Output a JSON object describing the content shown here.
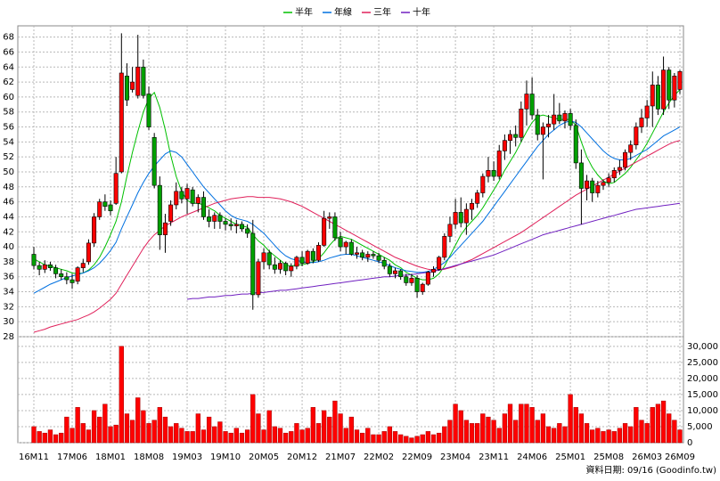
{
  "chart_data": {
    "type": "candlestick",
    "categories": [
      "16M11",
      null,
      null,
      null,
      null,
      null,
      null,
      "17M06",
      null,
      null,
      null,
      null,
      null,
      null,
      "18M01",
      null,
      null,
      null,
      null,
      null,
      null,
      "18M08",
      null,
      null,
      null,
      null,
      null,
      null,
      "19M03",
      null,
      null,
      null,
      null,
      null,
      null,
      "19M10",
      null,
      null,
      null,
      null,
      null,
      null,
      "20M05",
      null,
      null,
      null,
      null,
      null,
      null,
      "20M12",
      null,
      null,
      null,
      null,
      null,
      null,
      "21M07",
      null,
      null,
      null,
      null,
      null,
      null,
      "22M02",
      null,
      null,
      null,
      null,
      null,
      null,
      "22M09",
      null,
      null,
      null,
      null,
      null,
      null,
      "23M04",
      null,
      null,
      null,
      null,
      null,
      null,
      "23M11",
      null,
      null,
      null,
      null,
      null,
      null,
      "24M06",
      null,
      null,
      null,
      null,
      null,
      null,
      "25M01",
      null,
      null,
      null,
      null,
      null,
      null,
      "25M08",
      null,
      null,
      null,
      null,
      null,
      null,
      "26M03",
      null,
      null,
      null,
      null,
      null,
      "26M09"
    ],
    "open": [
      39,
      37.5,
      37,
      37.6,
      37.2,
      36.4,
      36,
      35.6,
      35.4,
      37.2,
      38,
      40.5,
      44,
      46,
      45.6,
      45.8,
      50,
      62.8,
      61,
      60.2,
      64,
      60.4,
      54.6,
      48.2,
      41.6,
      43.4,
      45.6,
      47.4,
      46.4,
      47.6,
      45.8,
      46.6,
      44,
      43.4,
      44.2,
      43.4,
      43,
      42.8,
      43,
      42.4,
      41.8,
      33.6,
      38,
      39.2,
      37.6,
      37,
      37.8,
      36.8,
      37.4,
      38.6,
      37.8,
      39.4,
      38.2,
      40.2,
      43.8,
      44,
      41.2,
      40,
      40.6,
      39,
      39.2,
      38.6,
      39,
      38.8,
      38.2,
      37.4,
      36.4,
      36.8,
      36,
      35.2,
      35.8,
      34,
      35,
      36.6,
      37,
      38.6,
      41.4,
      43,
      44.6,
      43.2,
      45,
      45.8,
      47.2,
      49.4,
      50.2,
      49.4,
      52.8,
      54.2,
      55,
      54.6,
      58.4,
      60.4,
      57.6,
      55,
      56,
      56.4,
      57.6,
      56.8,
      57.8,
      56.2,
      51.2,
      47.8,
      48.8,
      47.2,
      48.2,
      48.6,
      49.2,
      50.2,
      50.6,
      52.6,
      53.6,
      56,
      57.2,
      58.8,
      61.6,
      58.4,
      63.6,
      59.6,
      61
    ],
    "high": [
      40,
      38,
      38.2,
      38,
      37.6,
      37,
      36.6,
      36.4,
      37.4,
      38.4,
      41,
      44.5,
      46.4,
      47,
      46.2,
      52,
      68.5,
      64.5,
      64,
      68.3,
      65,
      61.4,
      55.2,
      49.4,
      44.4,
      46.2,
      48.6,
      48,
      48.4,
      48,
      47,
      47.4,
      45,
      44.6,
      44.6,
      43.8,
      43.8,
      43.6,
      43.4,
      43,
      43.6,
      38.4,
      39.8,
      39.6,
      38.6,
      38.2,
      38,
      37.8,
      38.8,
      39.4,
      39.6,
      39.8,
      40.6,
      44.8,
      44.6,
      44.6,
      42,
      40.8,
      41,
      40,
      39.6,
      39.4,
      39.4,
      39.2,
      38.6,
      37.8,
      37.2,
      37,
      36.4,
      36.4,
      36.2,
      35.2,
      36.8,
      37.4,
      38.8,
      41.8,
      44,
      46.4,
      46.6,
      45.8,
      46.4,
      47.6,
      49.8,
      52,
      51.4,
      53.6,
      55,
      55.6,
      56.2,
      59.4,
      62.2,
      62.6,
      58.4,
      56.6,
      57.6,
      60.4,
      59.2,
      58.2,
      58.4,
      57,
      53,
      49.6,
      49.2,
      48.8,
      49,
      49.8,
      50.6,
      51.6,
      53,
      54.2,
      56.6,
      58.4,
      59.6,
      63.4,
      62.8,
      65.4,
      64,
      63.2,
      63.6
    ],
    "low": [
      37,
      36.2,
      36.5,
      36.8,
      35.8,
      35.6,
      35,
      34.4,
      35,
      36.6,
      37.6,
      40,
      43.6,
      44.8,
      44.2,
      45.6,
      49.8,
      58.8,
      60.6,
      59.8,
      59.8,
      55.6,
      47.8,
      39.6,
      39.2,
      42.8,
      45,
      45.8,
      44.4,
      45.4,
      44.6,
      43.6,
      42.6,
      42.4,
      42.4,
      42.2,
      42.2,
      41.8,
      42,
      41.2,
      31.6,
      33.2,
      37,
      37,
      36.4,
      36.4,
      36.2,
      36,
      37,
      37.4,
      37.6,
      37.8,
      38,
      40,
      42.4,
      40.8,
      39.4,
      39,
      38.8,
      38.4,
      38.2,
      38,
      38.4,
      37.8,
      37,
      36,
      35.8,
      35.6,
      34.8,
      34.8,
      33.2,
      33.6,
      34.8,
      36,
      36.8,
      38.2,
      40.6,
      42.4,
      42.6,
      41.6,
      43.6,
      45.2,
      46.6,
      48.6,
      48.8,
      49,
      51.6,
      52.4,
      53.4,
      54,
      56.2,
      57,
      54.2,
      49,
      54.6,
      55.6,
      56.4,
      55.8,
      55.6,
      50.4,
      43,
      46.2,
      46,
      46.6,
      47.6,
      48,
      48.6,
      49.6,
      50.2,
      51.6,
      53,
      55.2,
      56,
      56,
      57.6,
      57.6,
      58.4,
      58.6,
      60.4
    ],
    "close": [
      37.5,
      37,
      37.6,
      37.2,
      36.4,
      36,
      35.6,
      35.2,
      37.2,
      37.8,
      40.5,
      44,
      46,
      45.4,
      44.8,
      49.8,
      63.2,
      59.6,
      62,
      64,
      60.2,
      56,
      48.2,
      41.6,
      43.2,
      45.6,
      47.4,
      46.4,
      47.8,
      45.8,
      46.6,
      44,
      43.4,
      44.2,
      43.4,
      43,
      42.8,
      43,
      42.4,
      41.8,
      33.6,
      38,
      39.2,
      37.6,
      37,
      37.8,
      36.8,
      37.4,
      38.6,
      37.8,
      39.4,
      38.2,
      40.2,
      43.8,
      44,
      41.2,
      40,
      40.6,
      39,
      39.2,
      38.6,
      39,
      38.8,
      38.2,
      37.4,
      36.4,
      36.8,
      36,
      35.2,
      35.8,
      34,
      35,
      36.6,
      37,
      38.6,
      41.4,
      43,
      44.6,
      43.2,
      45,
      45.8,
      47.2,
      49.4,
      50.2,
      49.4,
      52.8,
      54.2,
      55,
      54.6,
      58.4,
      60.4,
      57.6,
      55,
      56,
      56.4,
      57.6,
      56.8,
      57.8,
      56.2,
      51.2,
      47.8,
      48.8,
      47.2,
      48.2,
      48.6,
      49.2,
      50.2,
      50.6,
      52.6,
      53.6,
      56,
      57.2,
      58.8,
      61.6,
      58.4,
      63.6,
      59.6,
      62.8,
      63.4
    ],
    "up_color": "#ff0000",
    "down_color": "#00a000",
    "series": [
      {
        "name": "半年",
        "color": "#00c000",
        "values": [
          38.4,
          38.0,
          37.6,
          37.4,
          37.2,
          37.0,
          36.8,
          36.5,
          36.4,
          36.5,
          36.9,
          37.6,
          38.6,
          40.0,
          41.6,
          43.4,
          46.0,
          49.4,
          52.6,
          55.4,
          58.0,
          59.8,
          60.6,
          58.6,
          55.6,
          52.2,
          49.4,
          47.4,
          46.2,
          45.8,
          45.8,
          45.6,
          45.2,
          44.8,
          44.2,
          43.8,
          43.4,
          43.0,
          42.8,
          42.6,
          41.6,
          40.8,
          40.2,
          39.4,
          38.8,
          38.2,
          37.6,
          37.4,
          37.6,
          37.6,
          37.8,
          38.0,
          38.4,
          39.2,
          40.2,
          41.0,
          41.4,
          41.2,
          41.0,
          40.6,
          40.2,
          39.8,
          39.4,
          39.0,
          38.6,
          38.2,
          37.6,
          37.2,
          36.6,
          36.2,
          35.8,
          35.6,
          35.6,
          35.8,
          36.4,
          37.4,
          38.8,
          40.2,
          41.6,
          42.6,
          43.4,
          44.2,
          45.2,
          46.4,
          47.6,
          48.8,
          50.2,
          51.4,
          52.6,
          54.0,
          55.4,
          56.6,
          57.4,
          57.6,
          57.4,
          57.2,
          57.0,
          57.0,
          57.0,
          56.2,
          54.0,
          52.0,
          50.6,
          49.6,
          48.8,
          48.4,
          48.6,
          49.2,
          49.8,
          50.6,
          51.6,
          52.6,
          53.8,
          55.2,
          56.6,
          58.0,
          59.2,
          60.2,
          61.0
        ]
      },
      {
        "name": "年線",
        "color": "#0070e0",
        "values": [
          33.8,
          34.2,
          34.6,
          35.0,
          35.3,
          35.6,
          35.9,
          36.1,
          36.3,
          36.5,
          36.8,
          37.2,
          37.8,
          38.6,
          39.5,
          40.6,
          42.4,
          44.0,
          45.6,
          47.2,
          48.6,
          49.8,
          50.8,
          51.6,
          52.4,
          52.8,
          52.6,
          52.0,
          51.0,
          50.0,
          49.0,
          48.0,
          47.2,
          46.4,
          45.6,
          44.8,
          44.2,
          43.8,
          43.6,
          43.4,
          43.0,
          42.4,
          41.8,
          41.0,
          40.2,
          39.4,
          38.8,
          38.4,
          38.2,
          38.0,
          37.9,
          37.9,
          38.0,
          38.2,
          38.5,
          38.7,
          38.9,
          39.0,
          39.0,
          38.8,
          38.6,
          38.4,
          38.2,
          38.0,
          37.8,
          37.5,
          37.2,
          37.0,
          36.8,
          36.7,
          36.6,
          36.6,
          36.7,
          37.0,
          37.4,
          37.9,
          38.6,
          39.4,
          40.2,
          41.0,
          41.8,
          42.6,
          43.4,
          44.4,
          45.4,
          46.4,
          47.4,
          48.4,
          49.4,
          50.4,
          51.4,
          52.4,
          53.4,
          54.2,
          55.0,
          55.6,
          56.2,
          56.6,
          56.8,
          56.6,
          56.0,
          55.2,
          54.4,
          53.6,
          52.8,
          52.2,
          51.8,
          51.6,
          51.6,
          51.8,
          52.2,
          52.6,
          53.0,
          53.6,
          54.2,
          54.8,
          55.2,
          55.6,
          56.0
        ]
      },
      {
        "name": "三年",
        "color": "#e0205a",
        "values": [
          28.6,
          28.8,
          29.0,
          29.3,
          29.5,
          29.7,
          29.9,
          30.1,
          30.3,
          30.6,
          30.9,
          31.3,
          31.8,
          32.4,
          33.0,
          33.8,
          35.0,
          36.2,
          37.4,
          38.6,
          39.8,
          40.8,
          41.6,
          42.2,
          42.8,
          43.2,
          43.6,
          44.0,
          44.3,
          44.6,
          44.9,
          45.2,
          45.5,
          45.8,
          46.0,
          46.2,
          46.4,
          46.5,
          46.6,
          46.7,
          46.7,
          46.6,
          46.6,
          46.6,
          46.5,
          46.4,
          46.2,
          46.0,
          45.7,
          45.4,
          45.0,
          44.6,
          44.2,
          43.8,
          43.4,
          43.0,
          42.6,
          42.2,
          41.8,
          41.4,
          41.0,
          40.6,
          40.2,
          39.8,
          39.4,
          39.0,
          38.6,
          38.3,
          38.0,
          37.7,
          37.4,
          37.2,
          37.0,
          36.9,
          36.9,
          37.0,
          37.2,
          37.4,
          37.7,
          38.0,
          38.3,
          38.7,
          39.1,
          39.5,
          39.9,
          40.3,
          40.7,
          41.1,
          41.5,
          41.9,
          42.4,
          42.9,
          43.4,
          43.9,
          44.4,
          44.9,
          45.4,
          45.9,
          46.4,
          46.9,
          47.3,
          47.7,
          48.1,
          48.5,
          48.9,
          49.3,
          49.7,
          50.1,
          50.5,
          50.9,
          51.3,
          51.7,
          52.1,
          52.5,
          52.9,
          53.3,
          53.7,
          54.0,
          54.2
        ]
      },
      {
        "name": "十年",
        "color": "#7020c0",
        "values": [
          null,
          null,
          null,
          null,
          null,
          null,
          null,
          null,
          null,
          null,
          null,
          null,
          null,
          null,
          null,
          null,
          null,
          null,
          null,
          null,
          null,
          null,
          null,
          null,
          null,
          null,
          null,
          null,
          33.0,
          33.1,
          33.1,
          33.2,
          33.3,
          33.3,
          33.4,
          33.5,
          33.5,
          33.6,
          33.7,
          33.7,
          33.8,
          33.9,
          33.9,
          34.0,
          34.1,
          34.2,
          34.2,
          34.3,
          34.4,
          34.5,
          34.6,
          34.7,
          34.8,
          34.9,
          35.0,
          35.1,
          35.2,
          35.3,
          35.4,
          35.5,
          35.6,
          35.7,
          35.8,
          35.9,
          36.0,
          36.0,
          36.1,
          36.2,
          36.2,
          36.3,
          36.4,
          36.5,
          36.6,
          36.7,
          36.9,
          37.1,
          37.3,
          37.5,
          37.7,
          37.9,
          38.1,
          38.3,
          38.5,
          38.7,
          38.9,
          39.2,
          39.5,
          39.8,
          40.1,
          40.4,
          40.7,
          41.0,
          41.3,
          41.6,
          41.8,
          42.0,
          42.2,
          42.4,
          42.6,
          42.8,
          43.0,
          43.2,
          43.4,
          43.6,
          43.8,
          44.0,
          44.2,
          44.4,
          44.6,
          44.8,
          45.0,
          45.1,
          45.2,
          45.3,
          45.4,
          45.5,
          45.6,
          45.7,
          45.8
        ]
      }
    ],
    "ylim": [
      28,
      69.5
    ],
    "yticks": [
      28,
      30,
      32,
      34,
      36,
      38,
      40,
      42,
      44,
      46,
      48,
      50,
      52,
      54,
      56,
      58,
      60,
      62,
      64,
      66,
      68
    ],
    "grid": true,
    "legend": "top",
    "volume": {
      "color": "#ff0000",
      "values": [
        5000,
        3500,
        3000,
        4000,
        2500,
        3000,
        8000,
        4500,
        11000,
        6000,
        4000,
        10000,
        8000,
        12000,
        5000,
        5500,
        30000,
        9000,
        7000,
        14000,
        10000,
        6000,
        7000,
        11000,
        8000,
        5000,
        6000,
        4500,
        3500,
        3500,
        9000,
        4000,
        8000,
        5000,
        6500,
        3500,
        3000,
        4500,
        3000,
        4000,
        15000,
        9000,
        4000,
        10000,
        5000,
        4500,
        3000,
        3500,
        6000,
        4000,
        4500,
        11000,
        6000,
        10000,
        8000,
        13000,
        9000,
        4500,
        8000,
        4000,
        3000,
        4500,
        2500,
        2500,
        3500,
        5000,
        3500,
        2500,
        2000,
        1500,
        2000,
        2500,
        3500,
        2500,
        3000,
        5000,
        7000,
        12000,
        10000,
        7000,
        6000,
        6000,
        9000,
        8000,
        7000,
        4500,
        9000,
        12000,
        7000,
        12000,
        12000,
        11000,
        7000,
        9000,
        5000,
        4500,
        6000,
        5000,
        15000,
        11000,
        9000,
        6000,
        4000,
        4500,
        3500,
        4000,
        3500,
        4500,
        6000,
        5000,
        11000,
        7000,
        6000,
        11000,
        12000,
        13000,
        9000,
        7000,
        4000
      ],
      "ylim": [
        0,
        33000
      ],
      "yticks": [
        0,
        {
          "value": 5000,
          "label": "5,000"
        },
        {
          "value": 10000,
          "label": "10,000"
        },
        {
          "value": 15000,
          "label": "15,000"
        },
        {
          "value": 20000,
          "label": "20,000"
        },
        {
          "value": 25000,
          "label": "25,000"
        },
        {
          "value": 30000,
          "label": "30,000"
        }
      ]
    },
    "footer": "資料日期: 09/16 (Goodinfo.tw)"
  }
}
